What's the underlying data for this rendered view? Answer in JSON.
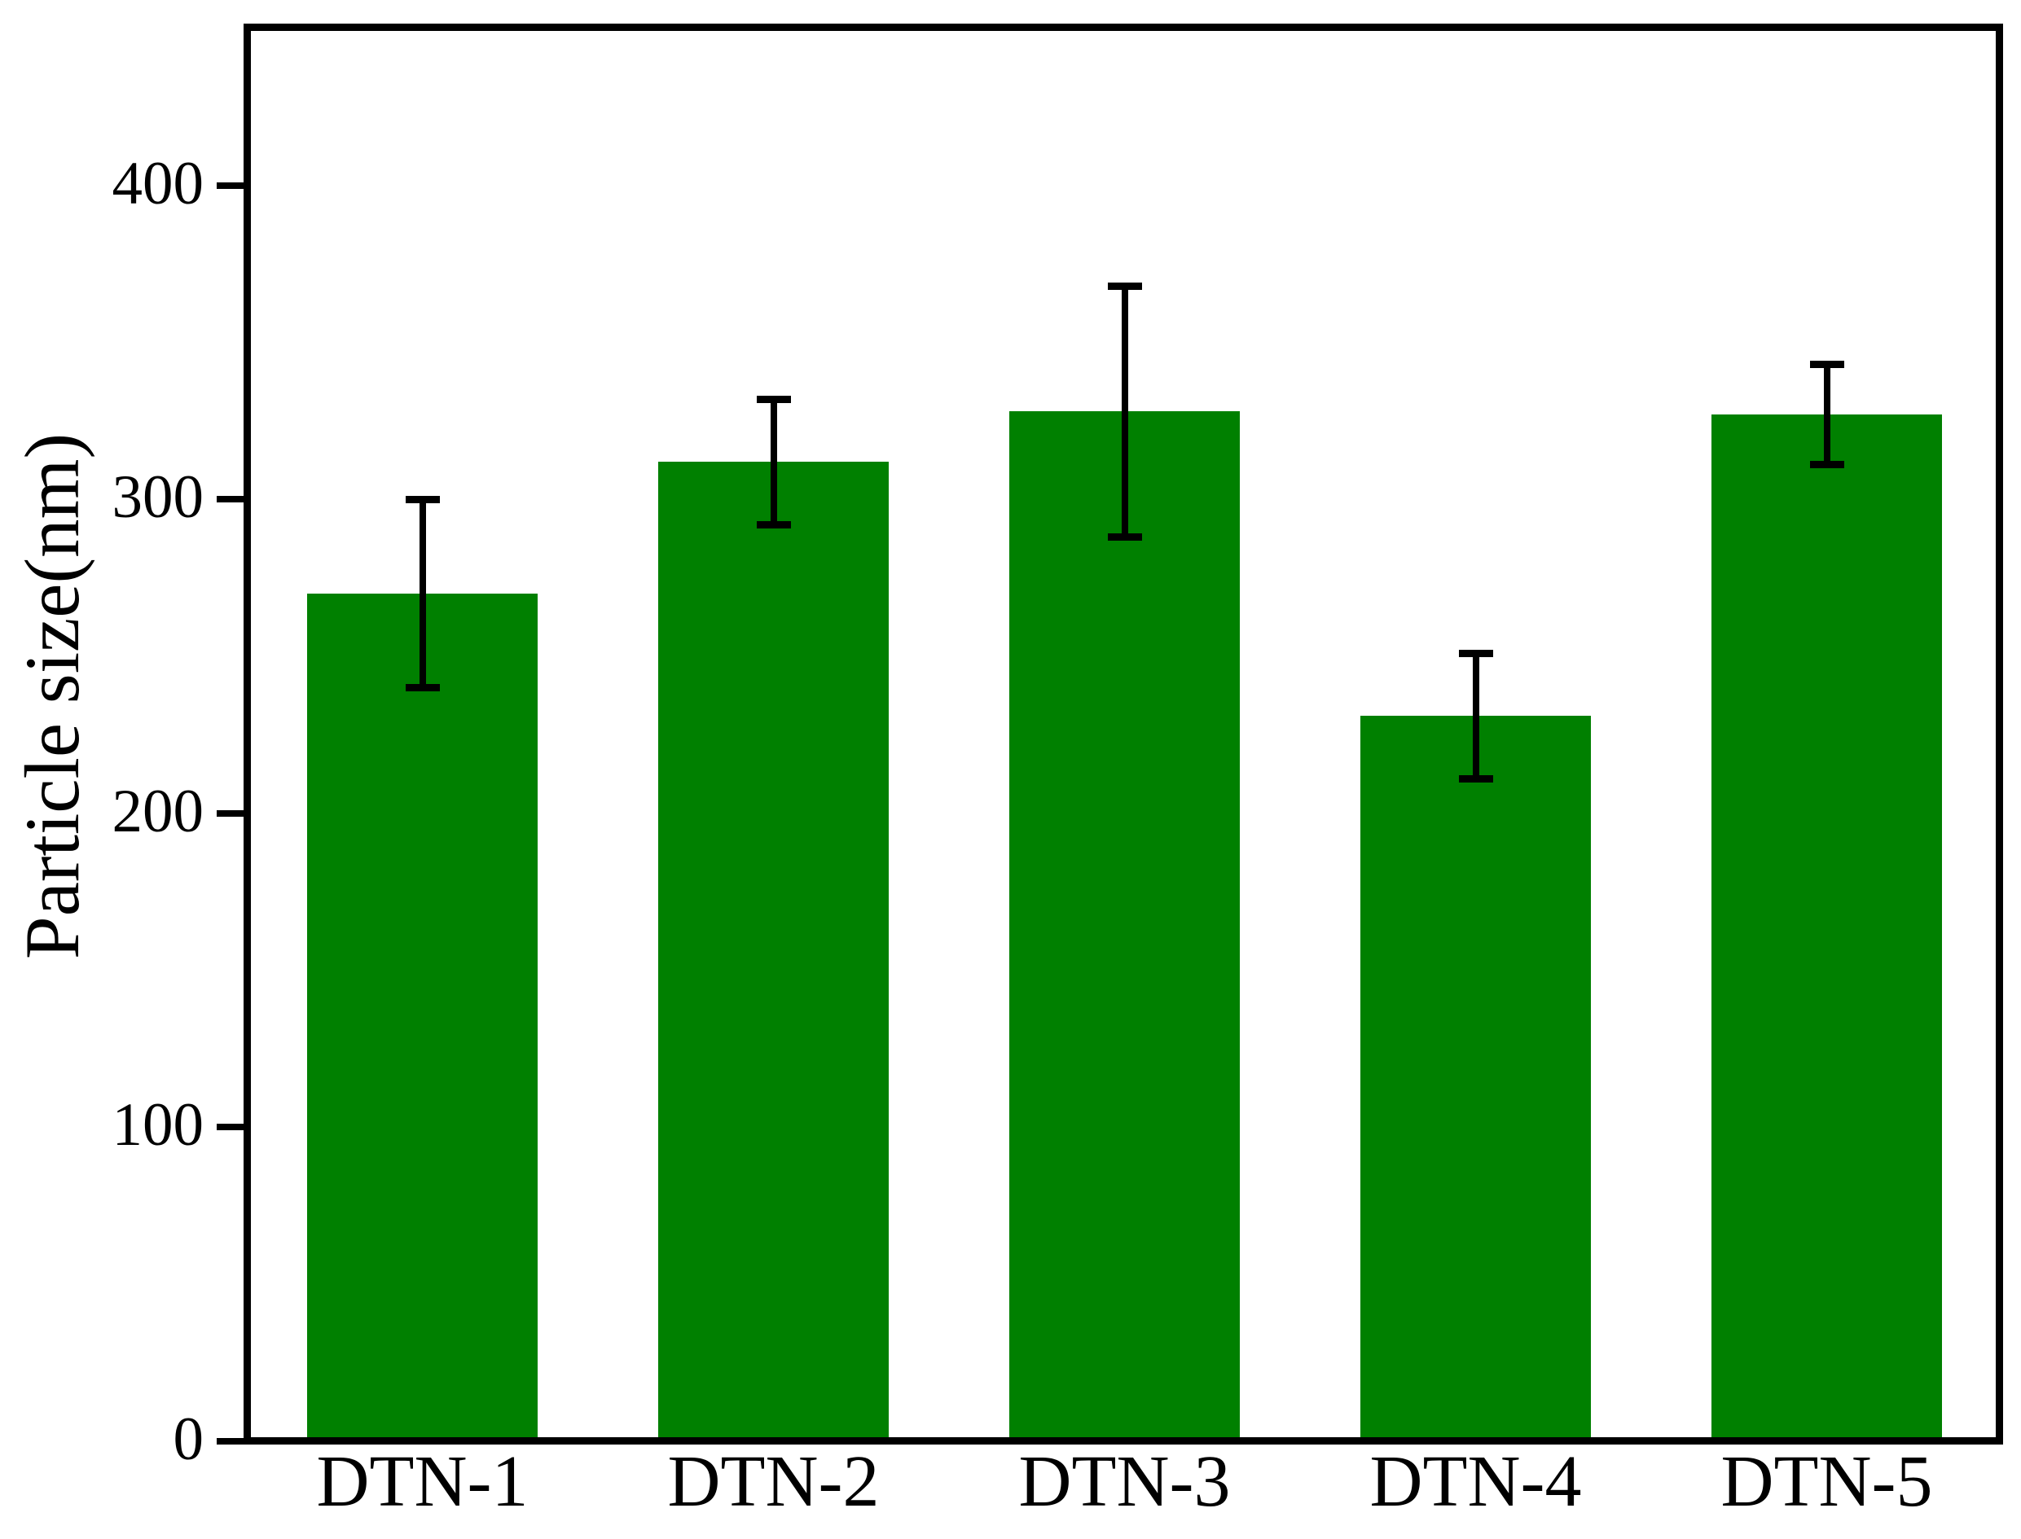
{
  "chart_data": {
    "type": "bar",
    "title": "",
    "xlabel": "",
    "ylabel": "Particle size(nm)",
    "categories": [
      "DTN-1",
      "DTN-2",
      "DTN-3",
      "DTN-4",
      "DTN-5"
    ],
    "values": [
      270,
      312,
      328,
      231,
      327
    ],
    "errors": [
      30,
      20,
      40,
      20,
      16
    ],
    "yticks": [
      0,
      100,
      200,
      300,
      400
    ],
    "ylim": [
      0,
      451
    ],
    "bar_color": "#008000",
    "error_bar_color": "#000000",
    "axis_color": "#000000",
    "background_color": "#ffffff",
    "grid": false,
    "legend": null,
    "tick_side": "left"
  }
}
